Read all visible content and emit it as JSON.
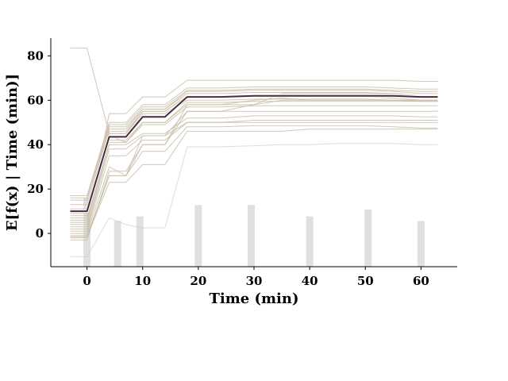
{
  "chart_data": {
    "type": "line",
    "title": "",
    "xlabel": "Time (min)",
    "ylabel": "E[f(x) | Time (min)]",
    "xlim": [
      -6.5,
      66.5
    ],
    "ylim": [
      -15,
      88
    ],
    "x_ticks": [
      0,
      10,
      20,
      30,
      40,
      50,
      60
    ],
    "y_ticks": [
      0,
      20,
      40,
      60,
      80
    ],
    "grid": false,
    "legend": "none",
    "colors": {
      "ice": "#c8bea8",
      "pd": "#4a2a3c",
      "hist": "#e0e0e0"
    },
    "x": [
      -3,
      0,
      4,
      7,
      10,
      14,
      18,
      24,
      30,
      35,
      40,
      45,
      50,
      55,
      60,
      63
    ],
    "series": [
      {
        "values": [
          83.5,
          83.5,
          45,
          45,
          55,
          55,
          62,
          62,
          62,
          62,
          62,
          62,
          62,
          62,
          61,
          61
        ]
      },
      {
        "values": [
          17,
          17,
          50,
          50,
          58,
          58,
          65.5,
          65.5,
          66,
          66,
          66,
          66,
          66,
          65.5,
          65,
          65
        ]
      },
      {
        "values": [
          16,
          16,
          49,
          49,
          57,
          57,
          64.5,
          64.5,
          65,
          65,
          65,
          65,
          65,
          64.5,
          64,
          64
        ]
      },
      {
        "values": [
          15,
          15,
          48,
          48,
          56,
          56,
          64,
          64,
          64.5,
          64.5,
          64.5,
          64.5,
          64.5,
          64,
          63,
          63
        ]
      },
      {
        "values": [
          13,
          13,
          47,
          47,
          56,
          56,
          63,
          63,
          63.5,
          63.5,
          63.5,
          63.5,
          63.5,
          63,
          62,
          62
        ]
      },
      {
        "values": [
          11,
          11,
          46,
          46,
          55,
          55,
          62,
          62,
          62.5,
          62.5,
          62.5,
          62.5,
          62.5,
          62,
          61,
          61
        ]
      },
      {
        "values": [
          9,
          9,
          45,
          45,
          54,
          54,
          61,
          61,
          61.5,
          61.5,
          61.5,
          61.5,
          61.5,
          61,
          60,
          60
        ]
      },
      {
        "values": [
          8,
          8,
          44,
          44,
          53,
          53,
          60,
          60,
          60.5,
          60.5,
          60.5,
          60.5,
          60.5,
          60,
          59.5,
          59.5
        ]
      },
      {
        "values": [
          7,
          7,
          44,
          41,
          50,
          50,
          59,
          59,
          59.5,
          59.5,
          59.5,
          59.5,
          59.5,
          59.5,
          59.5,
          59.5
        ]
      },
      {
        "values": [
          6,
          6,
          42,
          42,
          50,
          50,
          58,
          58,
          58,
          60,
          60,
          60,
          60,
          60,
          60,
          60
        ]
      },
      {
        "values": [
          5,
          5,
          41,
          41,
          49,
          49,
          57,
          57,
          57.5,
          57.5,
          57.5,
          57.5,
          57.5,
          57.5,
          57.5,
          57.5
        ]
      },
      {
        "values": [
          4,
          4,
          54,
          54,
          61.5,
          61.5,
          69,
          69,
          69,
          69,
          69,
          69,
          69,
          69,
          68.5,
          68.5
        ]
      },
      {
        "values": [
          3,
          3,
          40,
          40,
          45,
          45,
          52,
          52,
          53,
          53,
          53,
          53,
          53,
          53,
          52.5,
          52.5
        ]
      },
      {
        "values": [
          2,
          2,
          38,
          38,
          44,
          44,
          55,
          55,
          58,
          63,
          63,
          63,
          63,
          63,
          62,
          62
        ]
      },
      {
        "values": [
          1,
          1,
          35,
          35,
          42,
          42,
          50,
          50,
          50,
          50,
          50,
          50,
          50,
          50,
          50,
          50
        ]
      },
      {
        "values": [
          0,
          0,
          30,
          26,
          37,
          37,
          48,
          48,
          48.5,
          48.5,
          48.5,
          48.5,
          48.5,
          48,
          47.5,
          47.5
        ]
      },
      {
        "values": [
          -1,
          -1,
          26,
          26,
          40,
          40,
          55,
          55,
          55,
          55,
          55,
          55,
          55,
          55,
          55,
          55
        ]
      },
      {
        "values": [
          -1.5,
          -1.5,
          23,
          23,
          31,
          31,
          46,
          46,
          46,
          46,
          47,
          47,
          47,
          47,
          47,
          47
        ]
      },
      {
        "values": [
          -2,
          -2,
          26,
          26,
          44,
          44,
          50,
          50,
          51,
          51,
          51,
          51,
          51,
          51,
          51,
          51
        ]
      },
      {
        "values": [
          -3,
          -3,
          28,
          28,
          40,
          40,
          58,
          58,
          60,
          61,
          60,
          60,
          60,
          60,
          60,
          60
        ]
      },
      {
        "values": [
          -10.5,
          -10.5,
          7,
          4,
          2.5,
          2.5,
          39,
          39,
          39.5,
          40,
          40,
          40.5,
          40.5,
          40.5,
          40,
          40
        ]
      },
      {
        "values": [
          10,
          10,
          43.5,
          43.5,
          52.5,
          52.5,
          61.5,
          61.5,
          62,
          62,
          62,
          62,
          62,
          62,
          61.5,
          61.5
        ]
      }
    ],
    "histogram": [
      {
        "x": 0,
        "height": 0.3
      },
      {
        "x": 5.5,
        "height": 0.2
      },
      {
        "x": 9.5,
        "height": 0.22
      },
      {
        "x": 20,
        "height": 0.27
      },
      {
        "x": 29.5,
        "height": 0.27
      },
      {
        "x": 40,
        "height": 0.22
      },
      {
        "x": 50.5,
        "height": 0.25
      },
      {
        "x": 60,
        "height": 0.2
      }
    ]
  }
}
